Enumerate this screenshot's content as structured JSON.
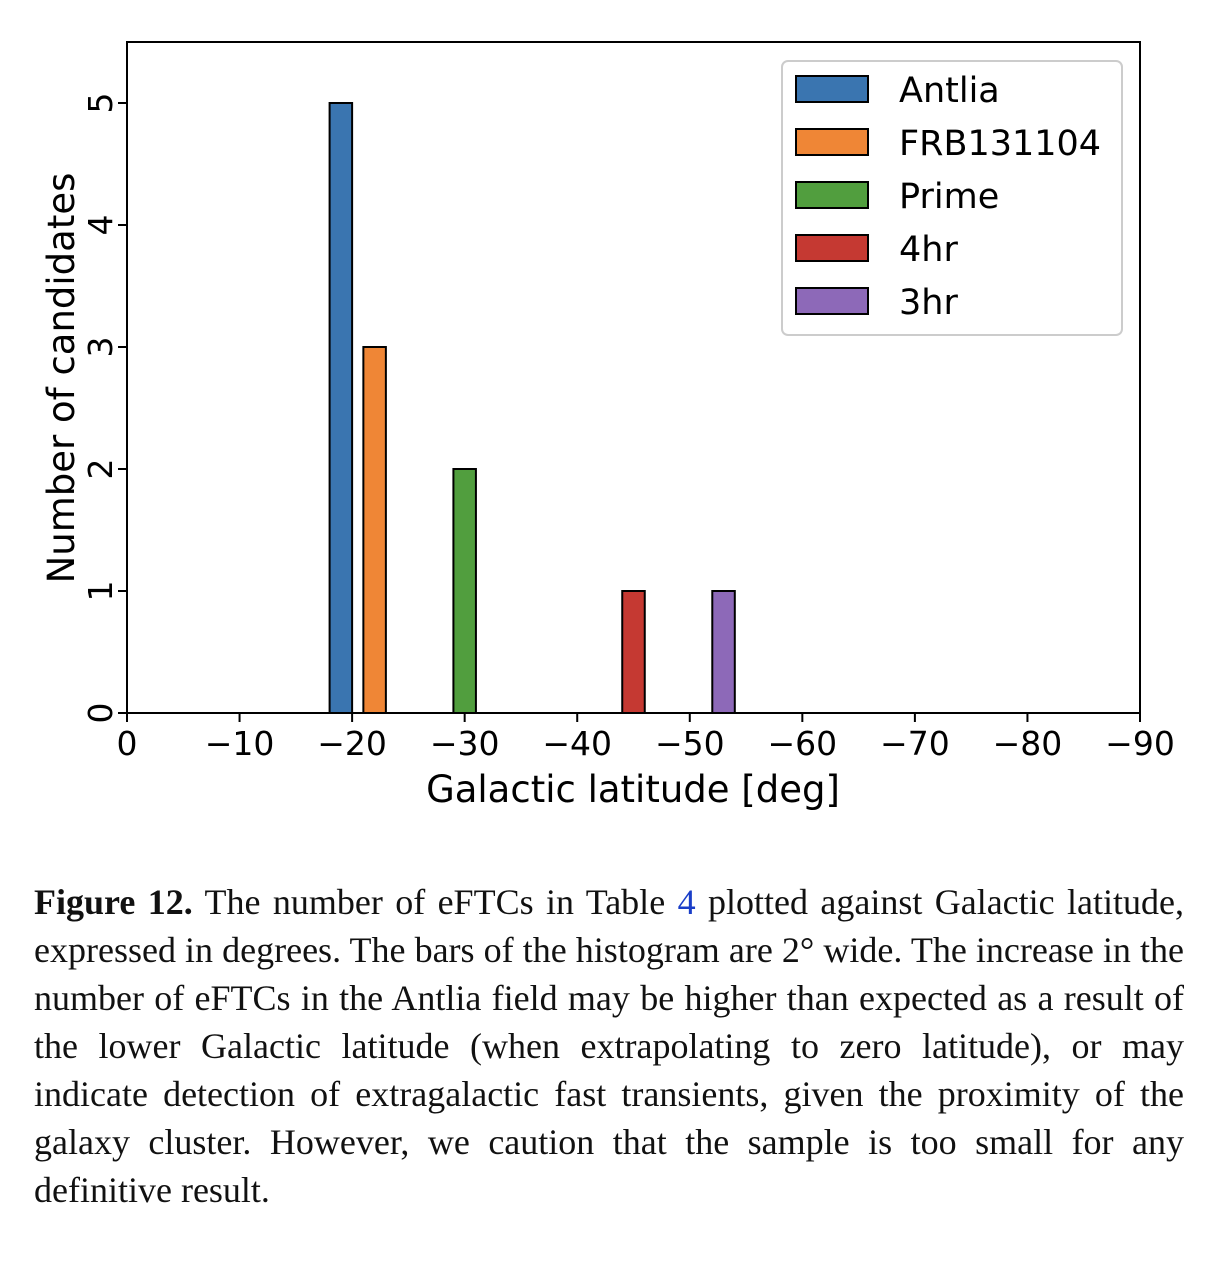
{
  "chart_data": {
    "type": "bar",
    "xlabel": "Galactic latitude [deg]",
    "ylabel": "Number of candidates",
    "xlim": [
      0,
      -90
    ],
    "ylim": [
      0,
      5.5
    ],
    "xticks": [
      0,
      -10,
      -20,
      -30,
      -40,
      -50,
      -60,
      -70,
      -80,
      -90
    ],
    "xtick_labels": [
      "0",
      "−10",
      "−20",
      "−30",
      "−40",
      "−50",
      "−60",
      "−70",
      "−80",
      "−90"
    ],
    "yticks": [
      0,
      1,
      2,
      3,
      4,
      5
    ],
    "ytick_labels": [
      "0",
      "1",
      "2",
      "3",
      "4",
      "5"
    ],
    "bar_width_deg": 2,
    "legend_position": "top-right",
    "grid": false,
    "series": [
      {
        "name": "Antlia",
        "color": "#3a75b0",
        "bars": [
          {
            "x": -19,
            "value": 5
          }
        ]
      },
      {
        "name": "FRB131104",
        "color": "#ef8636",
        "bars": [
          {
            "x": -22,
            "value": 3
          }
        ]
      },
      {
        "name": "Prime",
        "color": "#519e3e",
        "bars": [
          {
            "x": -30,
            "value": 2
          }
        ]
      },
      {
        "name": "4hr",
        "color": "#c53932",
        "bars": [
          {
            "x": -45,
            "value": 1
          }
        ]
      },
      {
        "name": "3hr",
        "color": "#8d69b8",
        "bars": [
          {
            "x": -53,
            "value": 1
          }
        ]
      }
    ]
  },
  "caption": {
    "label": "Figure 12.",
    "text_before_ref": "The number of eFTCs in Table",
    "ref": "4",
    "text_after_ref": "plotted against Galactic latitude, expressed in degrees. The bars of the histogram are 2° wide. The increase in the number of eFTCs in the Antlia field may be higher than expected as a result of the lower Galactic latitude (when extrapolating to zero latitude), or may indicate detection of extragalactic fast transients, given the proximity of the galaxy cluster. However, we caution that the sample is too small for any definitive result."
  }
}
